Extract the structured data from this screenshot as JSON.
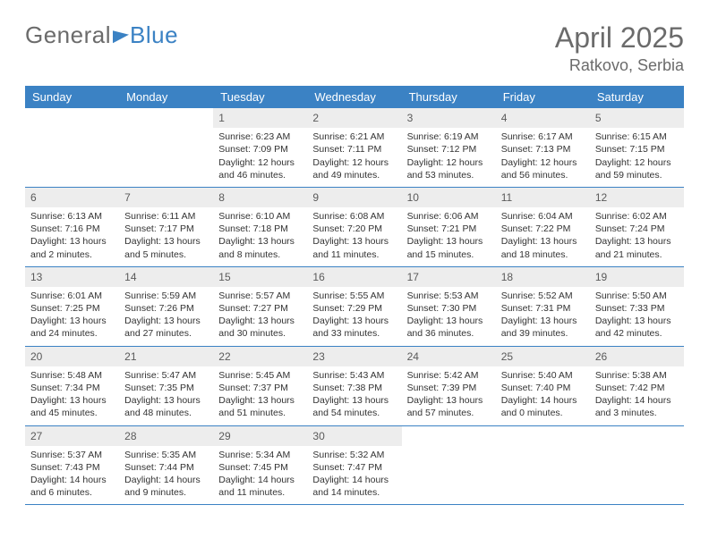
{
  "logo": {
    "text_left": "General",
    "text_right": "Blue"
  },
  "title": "April 2025",
  "location": "Ratkovo, Serbia",
  "colors": {
    "header_bar": "#3b82c4",
    "daynum_bg": "#ededed",
    "text_muted": "#6b6b6b",
    "text_body": "#333333",
    "background": "#ffffff"
  },
  "typography": {
    "title_fontsize": 32,
    "location_fontsize": 18,
    "weekday_fontsize": 13,
    "daynum_fontsize": 12,
    "body_fontsize": 10.5
  },
  "weekdays": [
    "Sunday",
    "Monday",
    "Tuesday",
    "Wednesday",
    "Thursday",
    "Friday",
    "Saturday"
  ],
  "weeks": [
    [
      {
        "n": "",
        "sr": "",
        "ss": "",
        "dl": ""
      },
      {
        "n": "",
        "sr": "",
        "ss": "",
        "dl": ""
      },
      {
        "n": "1",
        "sr": "Sunrise: 6:23 AM",
        "ss": "Sunset: 7:09 PM",
        "dl": "Daylight: 12 hours and 46 minutes."
      },
      {
        "n": "2",
        "sr": "Sunrise: 6:21 AM",
        "ss": "Sunset: 7:11 PM",
        "dl": "Daylight: 12 hours and 49 minutes."
      },
      {
        "n": "3",
        "sr": "Sunrise: 6:19 AM",
        "ss": "Sunset: 7:12 PM",
        "dl": "Daylight: 12 hours and 53 minutes."
      },
      {
        "n": "4",
        "sr": "Sunrise: 6:17 AM",
        "ss": "Sunset: 7:13 PM",
        "dl": "Daylight: 12 hours and 56 minutes."
      },
      {
        "n": "5",
        "sr": "Sunrise: 6:15 AM",
        "ss": "Sunset: 7:15 PM",
        "dl": "Daylight: 12 hours and 59 minutes."
      }
    ],
    [
      {
        "n": "6",
        "sr": "Sunrise: 6:13 AM",
        "ss": "Sunset: 7:16 PM",
        "dl": "Daylight: 13 hours and 2 minutes."
      },
      {
        "n": "7",
        "sr": "Sunrise: 6:11 AM",
        "ss": "Sunset: 7:17 PM",
        "dl": "Daylight: 13 hours and 5 minutes."
      },
      {
        "n": "8",
        "sr": "Sunrise: 6:10 AM",
        "ss": "Sunset: 7:18 PM",
        "dl": "Daylight: 13 hours and 8 minutes."
      },
      {
        "n": "9",
        "sr": "Sunrise: 6:08 AM",
        "ss": "Sunset: 7:20 PM",
        "dl": "Daylight: 13 hours and 11 minutes."
      },
      {
        "n": "10",
        "sr": "Sunrise: 6:06 AM",
        "ss": "Sunset: 7:21 PM",
        "dl": "Daylight: 13 hours and 15 minutes."
      },
      {
        "n": "11",
        "sr": "Sunrise: 6:04 AM",
        "ss": "Sunset: 7:22 PM",
        "dl": "Daylight: 13 hours and 18 minutes."
      },
      {
        "n": "12",
        "sr": "Sunrise: 6:02 AM",
        "ss": "Sunset: 7:24 PM",
        "dl": "Daylight: 13 hours and 21 minutes."
      }
    ],
    [
      {
        "n": "13",
        "sr": "Sunrise: 6:01 AM",
        "ss": "Sunset: 7:25 PM",
        "dl": "Daylight: 13 hours and 24 minutes."
      },
      {
        "n": "14",
        "sr": "Sunrise: 5:59 AM",
        "ss": "Sunset: 7:26 PM",
        "dl": "Daylight: 13 hours and 27 minutes."
      },
      {
        "n": "15",
        "sr": "Sunrise: 5:57 AM",
        "ss": "Sunset: 7:27 PM",
        "dl": "Daylight: 13 hours and 30 minutes."
      },
      {
        "n": "16",
        "sr": "Sunrise: 5:55 AM",
        "ss": "Sunset: 7:29 PM",
        "dl": "Daylight: 13 hours and 33 minutes."
      },
      {
        "n": "17",
        "sr": "Sunrise: 5:53 AM",
        "ss": "Sunset: 7:30 PM",
        "dl": "Daylight: 13 hours and 36 minutes."
      },
      {
        "n": "18",
        "sr": "Sunrise: 5:52 AM",
        "ss": "Sunset: 7:31 PM",
        "dl": "Daylight: 13 hours and 39 minutes."
      },
      {
        "n": "19",
        "sr": "Sunrise: 5:50 AM",
        "ss": "Sunset: 7:33 PM",
        "dl": "Daylight: 13 hours and 42 minutes."
      }
    ],
    [
      {
        "n": "20",
        "sr": "Sunrise: 5:48 AM",
        "ss": "Sunset: 7:34 PM",
        "dl": "Daylight: 13 hours and 45 minutes."
      },
      {
        "n": "21",
        "sr": "Sunrise: 5:47 AM",
        "ss": "Sunset: 7:35 PM",
        "dl": "Daylight: 13 hours and 48 minutes."
      },
      {
        "n": "22",
        "sr": "Sunrise: 5:45 AM",
        "ss": "Sunset: 7:37 PM",
        "dl": "Daylight: 13 hours and 51 minutes."
      },
      {
        "n": "23",
        "sr": "Sunrise: 5:43 AM",
        "ss": "Sunset: 7:38 PM",
        "dl": "Daylight: 13 hours and 54 minutes."
      },
      {
        "n": "24",
        "sr": "Sunrise: 5:42 AM",
        "ss": "Sunset: 7:39 PM",
        "dl": "Daylight: 13 hours and 57 minutes."
      },
      {
        "n": "25",
        "sr": "Sunrise: 5:40 AM",
        "ss": "Sunset: 7:40 PM",
        "dl": "Daylight: 14 hours and 0 minutes."
      },
      {
        "n": "26",
        "sr": "Sunrise: 5:38 AM",
        "ss": "Sunset: 7:42 PM",
        "dl": "Daylight: 14 hours and 3 minutes."
      }
    ],
    [
      {
        "n": "27",
        "sr": "Sunrise: 5:37 AM",
        "ss": "Sunset: 7:43 PM",
        "dl": "Daylight: 14 hours and 6 minutes."
      },
      {
        "n": "28",
        "sr": "Sunrise: 5:35 AM",
        "ss": "Sunset: 7:44 PM",
        "dl": "Daylight: 14 hours and 9 minutes."
      },
      {
        "n": "29",
        "sr": "Sunrise: 5:34 AM",
        "ss": "Sunset: 7:45 PM",
        "dl": "Daylight: 14 hours and 11 minutes."
      },
      {
        "n": "30",
        "sr": "Sunrise: 5:32 AM",
        "ss": "Sunset: 7:47 PM",
        "dl": "Daylight: 14 hours and 14 minutes."
      },
      {
        "n": "",
        "sr": "",
        "ss": "",
        "dl": ""
      },
      {
        "n": "",
        "sr": "",
        "ss": "",
        "dl": ""
      },
      {
        "n": "",
        "sr": "",
        "ss": "",
        "dl": ""
      }
    ]
  ]
}
